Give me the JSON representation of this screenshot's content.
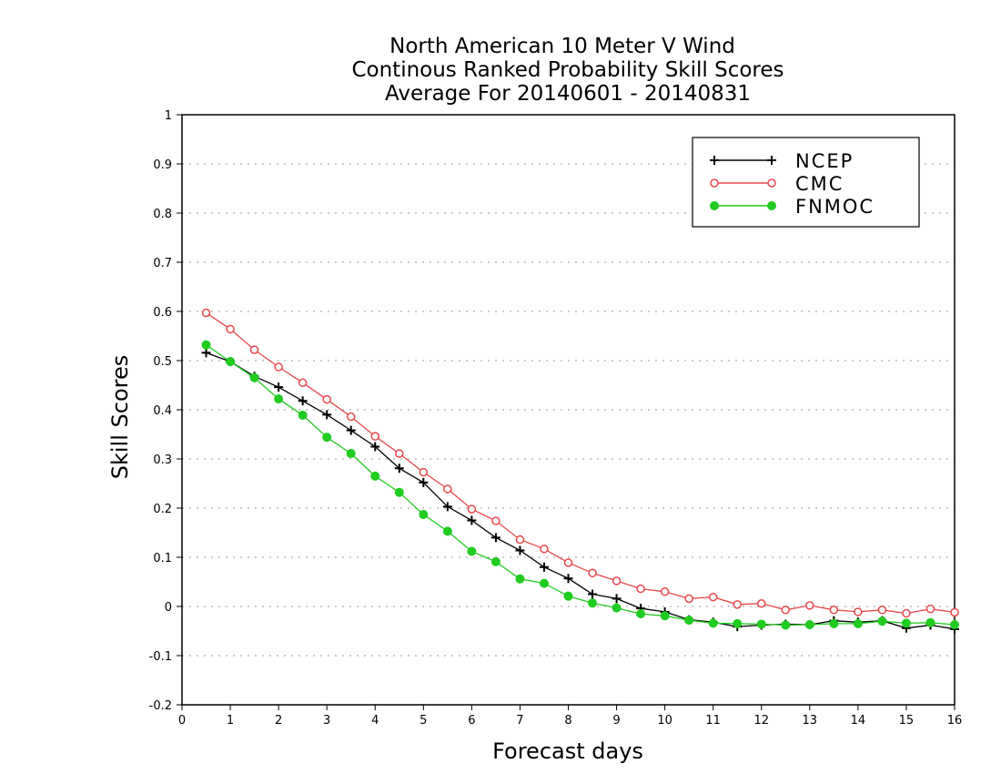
{
  "chart_data": {
    "type": "line",
    "title_lines": [
      "North American 10 Meter V Wind",
      "Continous Ranked Probability Skill Scores",
      "Average For 20140601 - 20140831"
    ],
    "xlabel": "Forecast days",
    "ylabel": "Skill Scores",
    "xlim": [
      0,
      16
    ],
    "ylim": [
      -0.2,
      1
    ],
    "xticks": [
      "0",
      "1",
      "2",
      "3",
      "4",
      "5",
      "6",
      "7",
      "8",
      "9",
      "10",
      "11",
      "12",
      "13",
      "14",
      "15",
      "16"
    ],
    "yticks": [
      "-0.2",
      "-0.1",
      "0",
      "0.1",
      "0.2",
      "0.3",
      "0.4",
      "0.5",
      "0.6",
      "0.7",
      "0.8",
      "0.9",
      "1"
    ],
    "grid": true,
    "legend_position": "top-right",
    "x": [
      0.5,
      1,
      1.5,
      2,
      2.5,
      3,
      3.5,
      4,
      4.5,
      5,
      5.5,
      6,
      6.5,
      7,
      7.5,
      8,
      8.5,
      9,
      9.5,
      10,
      10.5,
      11,
      11.5,
      12,
      12.5,
      13,
      13.5,
      14,
      14.5,
      15,
      15.5,
      16
    ],
    "series": [
      {
        "name": "NCEP",
        "color": "#000000",
        "marker": "plus",
        "values": [
          0.516,
          0.498,
          0.468,
          0.446,
          0.418,
          0.39,
          0.358,
          0.325,
          0.281,
          0.252,
          0.203,
          0.175,
          0.14,
          0.114,
          0.08,
          0.057,
          0.025,
          0.016,
          -0.004,
          -0.011,
          -0.027,
          -0.032,
          -0.041,
          -0.038,
          -0.036,
          -0.037,
          -0.029,
          -0.032,
          -0.029,
          -0.044,
          -0.038,
          -0.046
        ]
      },
      {
        "name": "CMC",
        "color": "#e8474c",
        "marker": "open-circle",
        "values": [
          0.597,
          0.564,
          0.522,
          0.487,
          0.455,
          0.421,
          0.386,
          0.346,
          0.311,
          0.273,
          0.239,
          0.198,
          0.174,
          0.136,
          0.117,
          0.089,
          0.068,
          0.052,
          0.036,
          0.03,
          0.016,
          0.019,
          0.004,
          0.006,
          -0.007,
          0.002,
          -0.007,
          -0.011,
          -0.007,
          -0.014,
          -0.005,
          -0.012
        ]
      },
      {
        "name": "FNMOC",
        "color": "#1fcc1f",
        "marker": "filled-circle",
        "values": [
          0.532,
          0.498,
          0.465,
          0.422,
          0.389,
          0.344,
          0.311,
          0.265,
          0.232,
          0.187,
          0.153,
          0.112,
          0.091,
          0.056,
          0.047,
          0.021,
          0.007,
          -0.003,
          -0.015,
          -0.019,
          -0.028,
          -0.034,
          -0.035,
          -0.036,
          -0.038,
          -0.037,
          -0.035,
          -0.035,
          -0.03,
          -0.034,
          -0.033,
          -0.037
        ]
      }
    ]
  }
}
